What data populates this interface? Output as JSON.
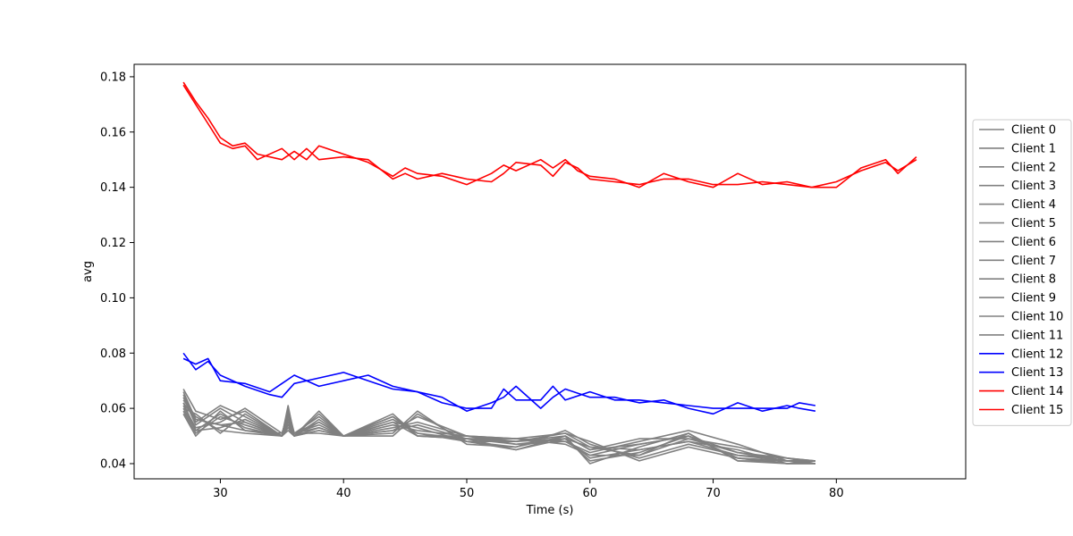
{
  "chart_data": {
    "type": "line",
    "title": "",
    "xlabel": "Time (s)",
    "ylabel": "avg",
    "xlim": [
      23.0,
      90.5
    ],
    "ylim": [
      0.0345,
      0.1845
    ],
    "xticks": [
      30,
      40,
      50,
      60,
      70,
      80
    ],
    "yticks": [
      0.04,
      0.06,
      0.08,
      0.1,
      0.12,
      0.14,
      0.16,
      0.18
    ],
    "ytick_labels": [
      "0.04",
      "0.06",
      "0.08",
      "0.10",
      "0.12",
      "0.14",
      "0.16",
      "0.18"
    ],
    "grid": false,
    "legend_position": "right",
    "series": [
      {
        "name": "Client 0",
        "color": "#808080",
        "x": [
          27,
          28,
          30,
          32,
          35,
          35.5,
          36,
          38,
          40,
          44,
          46,
          50,
          54,
          58,
          60,
          64,
          68,
          72,
          76,
          78.3
        ],
        "y": [
          0.066,
          0.056,
          0.054,
          0.052,
          0.05,
          0.058,
          0.051,
          0.053,
          0.05,
          0.055,
          0.05,
          0.049,
          0.048,
          0.049,
          0.046,
          0.045,
          0.048,
          0.043,
          0.041,
          0.041
        ]
      },
      {
        "name": "Client 1",
        "color": "#808080",
        "x": [
          27,
          28,
          30,
          32,
          35,
          35.5,
          36,
          38,
          40,
          44,
          46,
          50,
          54,
          58,
          60,
          64,
          68,
          72,
          76,
          78.3
        ],
        "y": [
          0.064,
          0.054,
          0.06,
          0.055,
          0.05,
          0.06,
          0.05,
          0.055,
          0.05,
          0.057,
          0.051,
          0.048,
          0.046,
          0.05,
          0.045,
          0.047,
          0.05,
          0.044,
          0.041,
          0.04
        ]
      },
      {
        "name": "Client 2",
        "color": "#808080",
        "x": [
          27,
          28,
          30,
          32,
          35,
          35.5,
          36,
          38,
          40,
          44,
          46,
          50,
          54,
          58,
          60,
          64,
          68,
          72,
          76,
          78.3
        ],
        "y": [
          0.062,
          0.052,
          0.058,
          0.053,
          0.05,
          0.059,
          0.05,
          0.052,
          0.05,
          0.052,
          0.054,
          0.049,
          0.047,
          0.048,
          0.043,
          0.043,
          0.049,
          0.046,
          0.042,
          0.041
        ]
      },
      {
        "name": "Client 3",
        "color": "#808080",
        "x": [
          27,
          28,
          30,
          32,
          35,
          35.5,
          36,
          38,
          40,
          44,
          46,
          50,
          54,
          58,
          60,
          64,
          68,
          72,
          76,
          78.3
        ],
        "y": [
          0.06,
          0.058,
          0.051,
          0.058,
          0.05,
          0.055,
          0.05,
          0.058,
          0.05,
          0.058,
          0.05,
          0.05,
          0.049,
          0.051,
          0.048,
          0.041,
          0.046,
          0.042,
          0.04,
          0.04
        ]
      },
      {
        "name": "Client 4",
        "color": "#808080",
        "x": [
          27,
          28,
          30,
          32,
          35,
          35.5,
          36,
          38,
          40,
          44,
          46,
          50,
          54,
          58,
          60,
          64,
          68,
          72,
          76,
          78.3
        ],
        "y": [
          0.061,
          0.053,
          0.055,
          0.06,
          0.051,
          0.058,
          0.051,
          0.051,
          0.05,
          0.05,
          0.058,
          0.048,
          0.045,
          0.049,
          0.041,
          0.044,
          0.05,
          0.042,
          0.041,
          0.041
        ]
      },
      {
        "name": "Client 5",
        "color": "#808080",
        "x": [
          27,
          28,
          30,
          32,
          35,
          35.5,
          36,
          38,
          40,
          44,
          46,
          50,
          54,
          58,
          60,
          64,
          68,
          72,
          76,
          78.3
        ],
        "y": [
          0.063,
          0.057,
          0.052,
          0.051,
          0.05,
          0.052,
          0.05,
          0.056,
          0.05,
          0.054,
          0.052,
          0.05,
          0.048,
          0.05,
          0.04,
          0.046,
          0.051,
          0.041,
          0.04,
          0.04
        ]
      },
      {
        "name": "Client 6",
        "color": "#808080",
        "x": [
          27,
          28,
          30,
          32,
          35,
          35.5,
          36,
          38,
          40,
          44,
          46,
          50,
          54,
          58,
          60,
          64,
          68,
          72,
          76,
          78.3
        ],
        "y": [
          0.059,
          0.051,
          0.057,
          0.054,
          0.05,
          0.056,
          0.051,
          0.054,
          0.05,
          0.056,
          0.051,
          0.049,
          0.049,
          0.048,
          0.044,
          0.048,
          0.052,
          0.047,
          0.041,
          0.04
        ]
      },
      {
        "name": "Client 7",
        "color": "#808080",
        "x": [
          27,
          28,
          30,
          32,
          35,
          35.5,
          36,
          38,
          40,
          44,
          46,
          50,
          54,
          58,
          60,
          64,
          68,
          72,
          76,
          78.3
        ],
        "y": [
          0.065,
          0.055,
          0.061,
          0.057,
          0.05,
          0.061,
          0.05,
          0.059,
          0.05,
          0.051,
          0.059,
          0.047,
          0.046,
          0.052,
          0.047,
          0.042,
          0.047,
          0.043,
          0.042,
          0.041
        ]
      },
      {
        "name": "Client 8",
        "color": "#808080",
        "x": [
          27,
          28,
          30,
          32,
          35,
          35.5,
          36,
          38,
          40,
          44,
          46,
          50,
          54,
          58,
          60,
          64,
          68,
          72,
          76,
          78.3
        ],
        "y": [
          0.06,
          0.052,
          0.053,
          0.056,
          0.05,
          0.054,
          0.05,
          0.053,
          0.05,
          0.053,
          0.055,
          0.05,
          0.047,
          0.049,
          0.042,
          0.045,
          0.048,
          0.045,
          0.04,
          0.04
        ]
      },
      {
        "name": "Client 9",
        "color": "#808080",
        "x": [
          27,
          28,
          30,
          32,
          35,
          35.5,
          36,
          38,
          40,
          44,
          46,
          50,
          54,
          58,
          60,
          64,
          68,
          72,
          76,
          78.3
        ],
        "y": [
          0.058,
          0.05,
          0.059,
          0.052,
          0.051,
          0.057,
          0.051,
          0.057,
          0.05,
          0.055,
          0.053,
          0.048,
          0.048,
          0.051,
          0.046,
          0.043,
          0.051,
          0.041,
          0.041,
          0.041
        ]
      },
      {
        "name": "Client 10",
        "color": "#808080",
        "x": [
          27,
          28,
          30,
          32,
          35,
          35.5,
          36,
          38,
          40,
          44,
          46,
          50,
          54,
          58,
          60,
          64,
          68,
          72,
          76,
          78.3
        ],
        "y": [
          0.067,
          0.059,
          0.056,
          0.059,
          0.05,
          0.053,
          0.05,
          0.052,
          0.05,
          0.057,
          0.05,
          0.049,
          0.045,
          0.05,
          0.045,
          0.049,
          0.049,
          0.044,
          0.042,
          0.04
        ]
      },
      {
        "name": "Client 11",
        "color": "#808080",
        "x": [
          27,
          28,
          30,
          32,
          35,
          35.5,
          36,
          38,
          40,
          44,
          46,
          50,
          54,
          58,
          60,
          64,
          68,
          72,
          76,
          78.3
        ],
        "y": [
          0.062,
          0.056,
          0.054,
          0.055,
          0.05,
          0.06,
          0.051,
          0.055,
          0.05,
          0.052,
          0.057,
          0.05,
          0.049,
          0.047,
          0.043,
          0.047,
          0.05,
          0.042,
          0.04,
          0.041
        ]
      },
      {
        "name": "Client 12",
        "color": "#0000ff",
        "x": [
          27,
          28,
          29,
          30,
          32,
          34,
          35,
          36,
          38,
          40,
          42,
          44,
          46,
          48,
          50,
          52,
          53,
          54,
          56,
          57,
          58,
          60,
          62,
          64,
          66,
          68,
          70,
          72,
          74,
          76,
          77,
          78.3
        ],
        "y": [
          0.08,
          0.074,
          0.077,
          0.072,
          0.068,
          0.065,
          0.064,
          0.069,
          0.071,
          0.073,
          0.07,
          0.067,
          0.066,
          0.062,
          0.06,
          0.06,
          0.067,
          0.063,
          0.063,
          0.068,
          0.063,
          0.066,
          0.063,
          0.063,
          0.062,
          0.061,
          0.06,
          0.06,
          0.06,
          0.06,
          0.062,
          0.061
        ]
      },
      {
        "name": "Client 13",
        "color": "#0000ff",
        "x": [
          27,
          28,
          29,
          30,
          32,
          34,
          35,
          36,
          38,
          40,
          42,
          44,
          46,
          48,
          50,
          52,
          53,
          54,
          56,
          57,
          58,
          60,
          62,
          64,
          66,
          68,
          70,
          72,
          74,
          76,
          77,
          78.3
        ],
        "y": [
          0.078,
          0.076,
          0.078,
          0.07,
          0.069,
          0.066,
          0.069,
          0.072,
          0.068,
          0.07,
          0.072,
          0.068,
          0.066,
          0.064,
          0.059,
          0.062,
          0.064,
          0.068,
          0.06,
          0.064,
          0.067,
          0.064,
          0.064,
          0.062,
          0.063,
          0.06,
          0.058,
          0.062,
          0.059,
          0.061,
          0.06,
          0.059
        ]
      },
      {
        "name": "Client 15",
        "color": "#ff0000",
        "x": [
          27,
          28,
          29,
          30,
          31,
          32,
          33,
          35,
          36,
          37,
          38,
          40,
          42,
          44,
          45,
          46,
          48,
          50,
          52,
          53,
          54,
          56,
          57,
          58,
          59,
          60,
          62,
          64,
          66,
          68,
          70,
          72,
          74,
          76,
          78,
          80,
          82,
          84,
          85,
          86.5
        ],
        "y": [
          0.178,
          0.171,
          0.165,
          0.158,
          0.155,
          0.156,
          0.152,
          0.15,
          0.153,
          0.15,
          0.155,
          0.152,
          0.149,
          0.144,
          0.147,
          0.145,
          0.144,
          0.141,
          0.145,
          0.148,
          0.146,
          0.15,
          0.147,
          0.15,
          0.146,
          0.144,
          0.143,
          0.14,
          0.145,
          0.142,
          0.14,
          0.145,
          0.141,
          0.142,
          0.14,
          0.14,
          0.147,
          0.15,
          0.145,
          0.151
        ]
      },
      {
        "name": "Client 14",
        "color": "#ff0000",
        "x": [
          27,
          28,
          29,
          30,
          31,
          32,
          33,
          35,
          36,
          37,
          38,
          40,
          42,
          44,
          45,
          46,
          48,
          50,
          52,
          53,
          54,
          56,
          57,
          58,
          59,
          60,
          62,
          64,
          66,
          68,
          70,
          72,
          74,
          76,
          78,
          80,
          82,
          84,
          85,
          86.5
        ],
        "y": [
          0.177,
          0.17,
          0.163,
          0.156,
          0.154,
          0.155,
          0.15,
          0.154,
          0.15,
          0.154,
          0.15,
          0.151,
          0.15,
          0.143,
          0.145,
          0.143,
          0.145,
          0.143,
          0.142,
          0.145,
          0.149,
          0.148,
          0.144,
          0.149,
          0.147,
          0.143,
          0.142,
          0.141,
          0.143,
          0.143,
          0.141,
          0.141,
          0.142,
          0.141,
          0.14,
          0.142,
          0.146,
          0.149,
          0.146,
          0.15
        ]
      }
    ],
    "legend_order": [
      "Client 0",
      "Client 1",
      "Client 2",
      "Client 3",
      "Client 4",
      "Client 5",
      "Client 6",
      "Client 7",
      "Client 8",
      "Client 9",
      "Client 10",
      "Client 11",
      "Client 12",
      "Client 13",
      "Client 14",
      "Client 15"
    ]
  }
}
